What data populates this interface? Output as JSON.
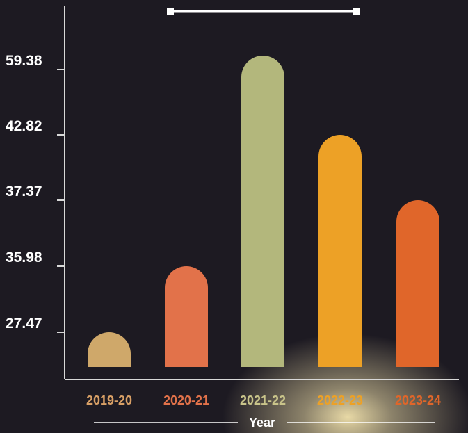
{
  "chart_data": {
    "type": "bar",
    "categories": [
      "2019-20",
      "2020-21",
      "2021-22",
      "2022-23",
      "2023-24"
    ],
    "values": [
      27.47,
      35.98,
      59.38,
      42.82,
      37.37
    ],
    "yticks": [
      "27.47",
      "35.98",
      "37.37",
      "42.82",
      "59.38"
    ],
    "xlabel": "Year",
    "colors": [
      "#cfa86a",
      "#e2724a",
      "#b3b77c",
      "#eda126",
      "#e0662a"
    ],
    "label_colors": [
      "#d9a066",
      "#e2724a",
      "#c9c48a",
      "#eda126",
      "#e0662a"
    ],
    "grid": false
  }
}
